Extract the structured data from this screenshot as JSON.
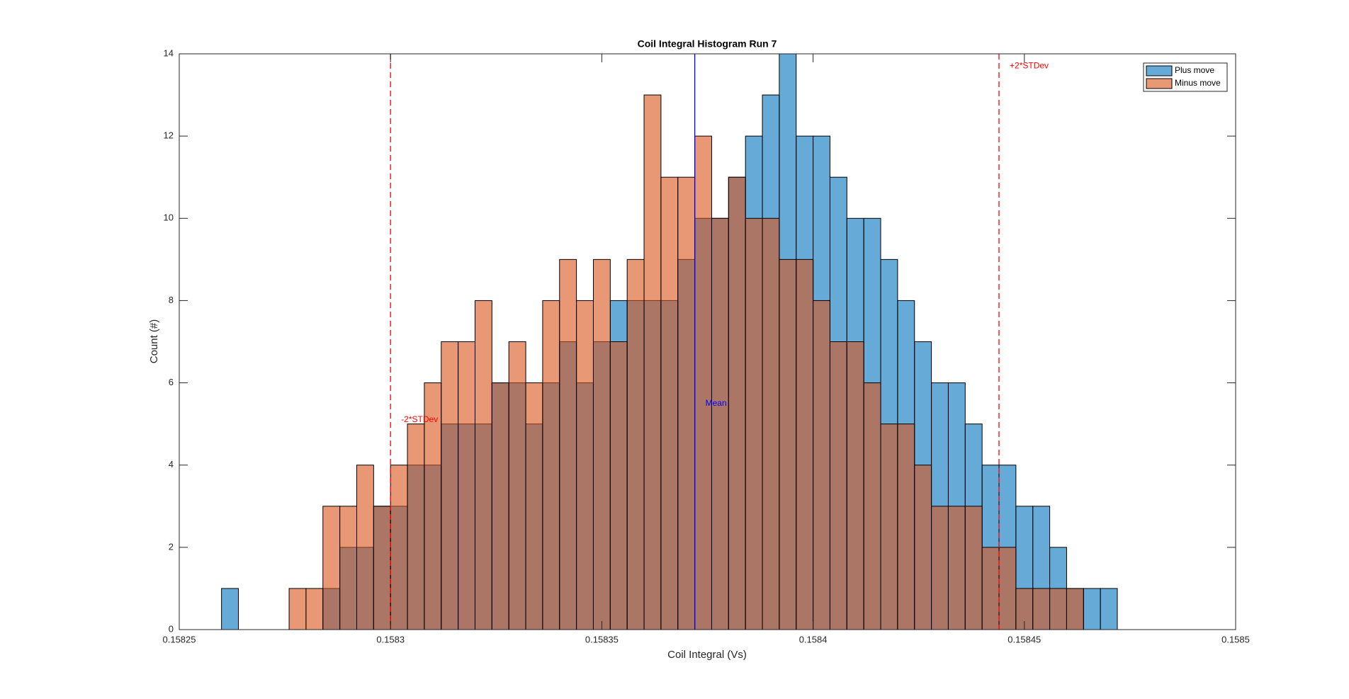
{
  "chart_data": {
    "type": "histogram",
    "title": "Coil Integral Histogram Run 7",
    "xlabel": "Coil Integral (Vs)",
    "ylabel": "Count (#)",
    "bins": [
      0.15826,
      0.158264,
      0.158268,
      0.158272,
      0.158276,
      0.15828,
      0.158284,
      0.158288,
      0.158292,
      0.158296,
      0.1583,
      0.158304,
      0.158308,
      0.158312,
      0.158316,
      0.15832,
      0.158324,
      0.158328,
      0.158332,
      0.158336,
      0.15834,
      0.158344,
      0.158348,
      0.158352,
      0.158356,
      0.15836,
      0.158364,
      0.158368,
      0.158372,
      0.158376,
      0.15838,
      0.158384,
      0.158388,
      0.158392,
      0.158396,
      0.1584,
      0.158404,
      0.158408,
      0.158412,
      0.158416,
      0.15842,
      0.158424,
      0.158428,
      0.158432,
      0.158436,
      0.15844,
      0.158444,
      0.158448,
      0.158452,
      0.158456,
      0.15846,
      0.158464,
      0.158468,
      0.158472,
      0.158476
    ],
    "series": [
      {
        "name": "Plus move",
        "color": "#0072bd",
        "values": [
          1,
          0,
          0,
          0,
          0,
          0,
          1,
          2,
          2,
          3,
          3,
          4,
          4,
          5,
          5,
          5,
          6,
          6,
          5,
          6,
          7,
          6,
          7,
          8,
          8,
          8,
          8,
          9,
          10,
          10,
          11,
          12,
          13,
          14,
          12,
          12,
          11,
          10,
          10,
          9,
          8,
          7,
          6,
          6,
          5,
          4,
          4,
          3,
          3,
          2,
          1,
          1,
          1,
          0
        ]
      },
      {
        "name": "Minus move",
        "color": "#d95319",
        "values": [
          0,
          0,
          0,
          0,
          1,
          1,
          3,
          3,
          4,
          3,
          4,
          5,
          6,
          7,
          7,
          8,
          6,
          7,
          6,
          8,
          9,
          8,
          9,
          7,
          9,
          13,
          11,
          11,
          12,
          10,
          11,
          10,
          10,
          9,
          9,
          8,
          7,
          7,
          6,
          5,
          5,
          4,
          3,
          3,
          3,
          2,
          2,
          1,
          1,
          1,
          1,
          0,
          0,
          0
        ]
      }
    ],
    "annotations": [
      {
        "text": "-2*STDev",
        "x": 0.1583,
        "y": 5.1,
        "color": "#ff0000",
        "dashed": true
      },
      {
        "text": "Mean",
        "x": 0.158372,
        "y": 5.5,
        "color": "#0000ff",
        "dashed": false
      },
      {
        "text": "+2*STDev",
        "x": 0.158444,
        "y": 13.7,
        "color": "#ff0000",
        "dashed": true
      }
    ],
    "xlim": [
      0.15825,
      0.1585
    ],
    "xticks": [
      0.15825,
      0.1583,
      0.15835,
      0.1584,
      0.15845,
      0.1585
    ],
    "ylim": [
      0,
      14
    ],
    "yticks": [
      0,
      2,
      4,
      6,
      8,
      10,
      12,
      14
    ],
    "legend": "upper right"
  }
}
